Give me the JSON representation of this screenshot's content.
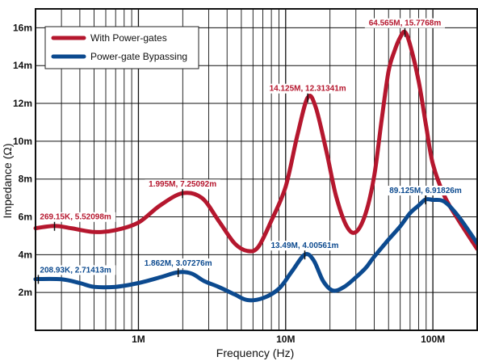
{
  "chart_data": {
    "type": "line",
    "xlabel": "Frequency (Hz)",
    "ylabel": "Impedance (Ω)",
    "xscale": "log",
    "xlim": [
      200000,
      200000000
    ],
    "ylim": [
      0,
      0.017
    ],
    "x_tick_labels": [
      "1M",
      "10M",
      "100M"
    ],
    "x_ticks": [
      1000000,
      10000000,
      100000000
    ],
    "y_tick_labels": [
      "2m",
      "4m",
      "6m",
      "8m",
      "10m",
      "12m",
      "14m",
      "16m"
    ],
    "y_ticks": [
      0.002,
      0.004,
      0.006,
      0.008,
      0.01,
      0.012,
      0.014,
      0.016
    ],
    "grid": true,
    "legend_position": "top-left",
    "series": [
      {
        "name": "With Power-gates",
        "color": "#b5172e",
        "x": [
          200000,
          269150,
          350000,
          500000,
          700000,
          1000000,
          1400000,
          1995000,
          2700000,
          3500000,
          4500000,
          5500000,
          6500000,
          8000000,
          10000000,
          12000000,
          14125000,
          16000000,
          19000000,
          22000000,
          26000000,
          30000000,
          35000000,
          40000000,
          45000000,
          50000000,
          55000000,
          60000000,
          64565000,
          70000000,
          80000000,
          90000000,
          100000000,
          120000000,
          150000000,
          200000000
        ],
        "values": [
          0.0054,
          0.00552098,
          0.0054,
          0.0052,
          0.0053,
          0.0057,
          0.0066,
          0.00725092,
          0.007,
          0.0058,
          0.0046,
          0.0042,
          0.0044,
          0.0058,
          0.0076,
          0.0103,
          0.01231341,
          0.0118,
          0.0094,
          0.0071,
          0.0055,
          0.0052,
          0.0062,
          0.0082,
          0.0112,
          0.0137,
          0.0148,
          0.0155,
          0.0157768,
          0.0151,
          0.0132,
          0.0108,
          0.0088,
          0.0071,
          0.0058,
          0.0043
        ]
      },
      {
        "name": "Power-gate Bypassing",
        "color": "#0c4a8f",
        "x": [
          200000,
          208930,
          300000,
          400000,
          500000,
          700000,
          1000000,
          1400000,
          1862000,
          2300000,
          2800000,
          3500000,
          4500000,
          5500000,
          7000000,
          9000000,
          11000000,
          13490000,
          15500000,
          18000000,
          21000000,
          25000000,
          30000000,
          35000000,
          40000000,
          50000000,
          60000000,
          70000000,
          80000000,
          89125000,
          100000000,
          120000000,
          150000000,
          200000000
        ],
        "values": [
          0.0027,
          0.00271413,
          0.0027,
          0.0025,
          0.0023,
          0.0023,
          0.0025,
          0.0028,
          0.00307276,
          0.003,
          0.0026,
          0.0023,
          0.0019,
          0.0016,
          0.0017,
          0.0022,
          0.0031,
          0.00400561,
          0.0037,
          0.0026,
          0.0021,
          0.0023,
          0.0028,
          0.0033,
          0.0039,
          0.0048,
          0.0055,
          0.0062,
          0.0066,
          0.00691826,
          0.0069,
          0.0068,
          0.006,
          0.0046
        ]
      }
    ],
    "annotations": [
      {
        "text": "269.15K, 5.52098m",
        "x": 269150,
        "y": 0.00552098,
        "color": "#b5172e"
      },
      {
        "text": "1.995M, 7.25092m",
        "x": 1995000,
        "y": 0.00725092,
        "color": "#b5172e"
      },
      {
        "text": "14.125M, 12.31341m",
        "x": 14125000,
        "y": 0.01231341,
        "color": "#b5172e"
      },
      {
        "text": "64.565M, 15.7768m",
        "x": 64565000,
        "y": 0.0157768,
        "color": "#b5172e"
      },
      {
        "text": "208.93K, 2.71413m",
        "x": 208930,
        "y": 0.00271413,
        "color": "#0c4a8f"
      },
      {
        "text": "1.862M, 3.07276m",
        "x": 1862000,
        "y": 0.00307276,
        "color": "#0c4a8f"
      },
      {
        "text": "13.49M, 4.00561m",
        "x": 13490000,
        "y": 0.00400561,
        "color": "#0c4a8f"
      },
      {
        "text": "89.125M, 6.91826m",
        "x": 89125000,
        "y": 0.00691826,
        "color": "#0c4a8f"
      }
    ]
  }
}
